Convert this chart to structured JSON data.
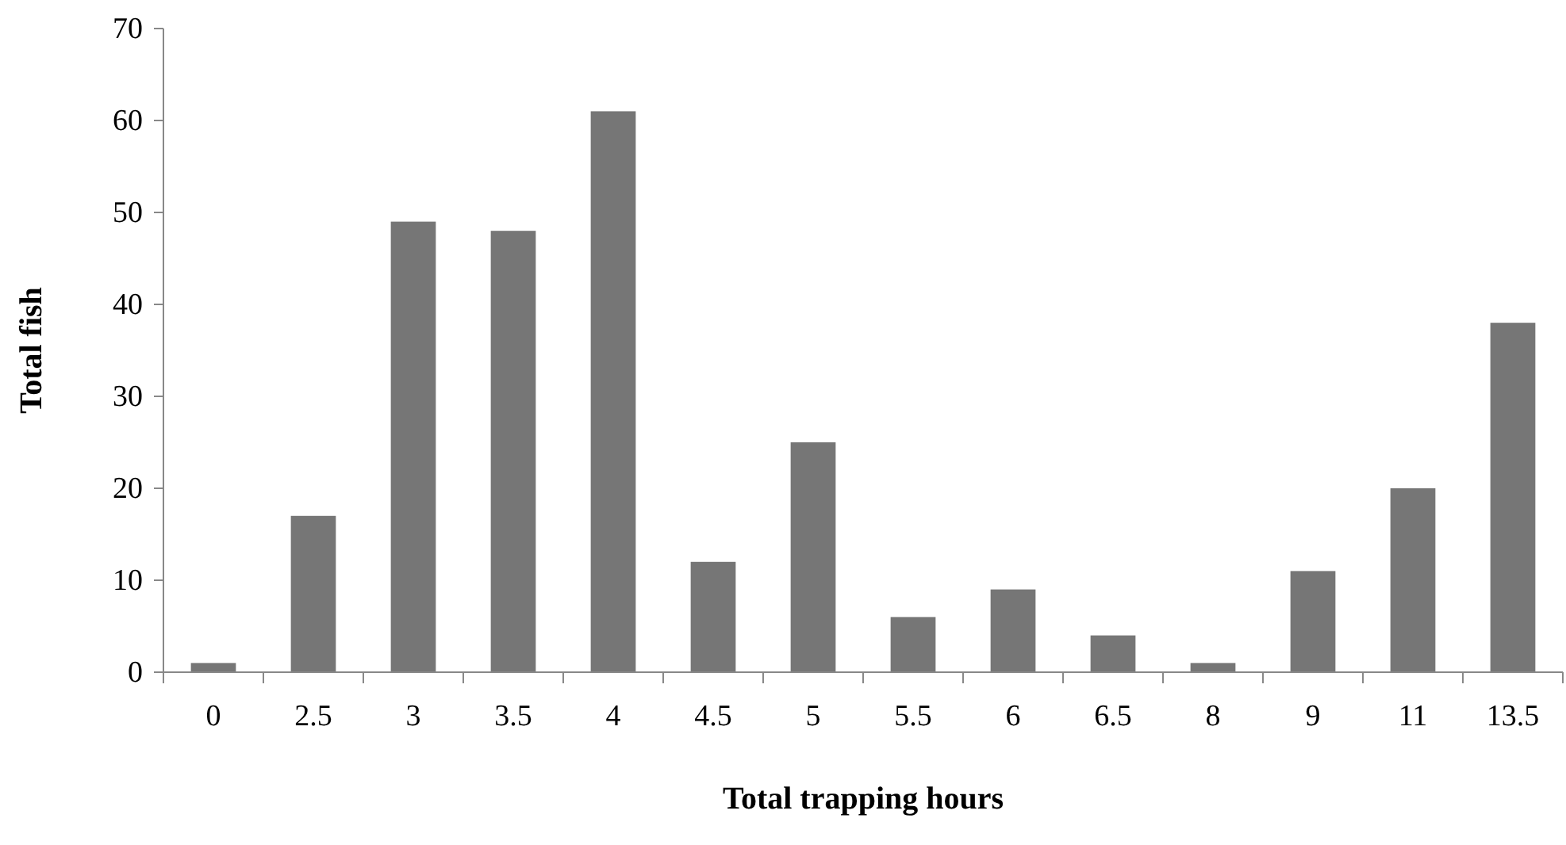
{
  "chart_data": {
    "type": "bar",
    "xlabel": "Total trapping hours",
    "ylabel": "Total fish",
    "categories": [
      "0",
      "2.5",
      "3",
      "3.5",
      "4",
      "4.5",
      "5",
      "5.5",
      "6",
      "6.5",
      "8",
      "9",
      "11",
      "13.5"
    ],
    "values": [
      1,
      17,
      49,
      48,
      61,
      12,
      25,
      6,
      9,
      4,
      1,
      11,
      20,
      38
    ],
    "color": "#767676",
    "ylim": [
      0,
      70
    ],
    "yticks": [
      0,
      10,
      20,
      30,
      40,
      50,
      60,
      70
    ],
    "grid": false
  }
}
